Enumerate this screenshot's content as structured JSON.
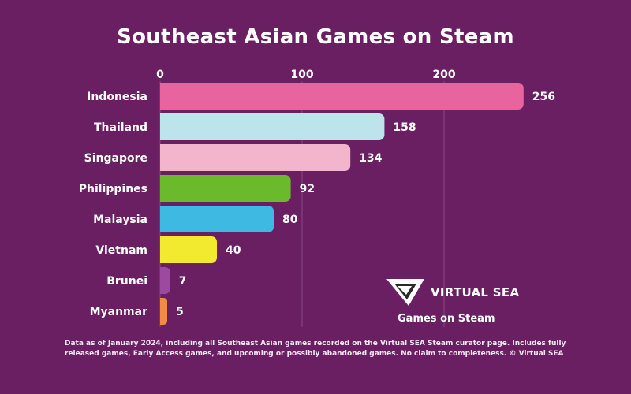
{
  "chart_data": {
    "type": "bar",
    "orientation": "horizontal",
    "title": "Southeast Asian Games on Steam",
    "categories": [
      "Indonesia",
      "Thailand",
      "Singapore",
      "Philippines",
      "Malaysia",
      "Vietnam",
      "Brunei",
      "Myanmar"
    ],
    "values": [
      256,
      158,
      134,
      92,
      80,
      40,
      7,
      5
    ],
    "colors": [
      "#e8649e",
      "#bde4ea",
      "#f2b5cb",
      "#6aba2c",
      "#3db9e2",
      "#f2ea2e",
      "#9b4aa0",
      "#f28a48"
    ],
    "xticks": [
      0,
      100,
      200
    ],
    "xlim": [
      0,
      256
    ],
    "xaxis_position": "top",
    "grid": true
  },
  "brand": {
    "name": "VIRTUAL SEA",
    "subtitle": "Games on Steam"
  },
  "footnote": "Data as of January 2024, including all Southeast Asian games recorded on the Virtual SEA Steam curator page. Includes fully released games, Early Access games, and upcoming or possibly abandoned games. No claim to completeness. © Virtual SEA",
  "colors": {
    "background": "#6a1f62",
    "text": "#ffffff",
    "grid": "#8a4a83"
  }
}
